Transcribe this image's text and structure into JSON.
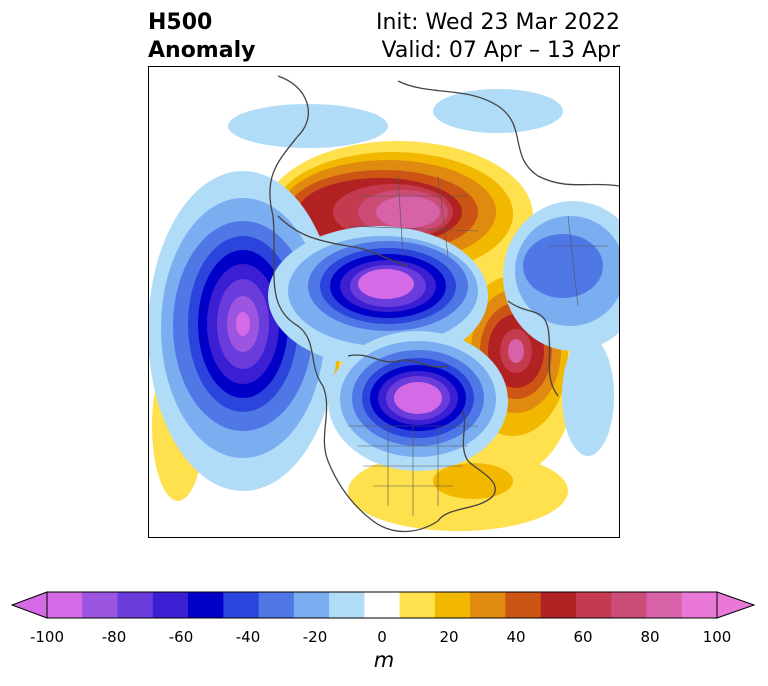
{
  "title": {
    "left_line1": "H500",
    "left_line2": "Anomaly",
    "right_line1": "Init: Wed 23 Mar 2022",
    "right_line2": "Valid: 07 Apr – 13 Apr"
  },
  "colorbar": {
    "label": "m",
    "ticks": [
      "-100",
      "-80",
      "-60",
      "-40",
      "-20",
      "0",
      "20",
      "40",
      "60",
      "80",
      "100"
    ],
    "colors": [
      "#d56ae6",
      "#9b55e0",
      "#6a3cdc",
      "#3b1fd2",
      "#0000c8",
      "#2a44dc",
      "#4f78e6",
      "#7aaef0",
      "#b0dcf8",
      "#ffffff",
      "#ffe04d",
      "#f2b800",
      "#e08a10",
      "#cc5515",
      "#b22222",
      "#c43a4f",
      "#cc4c78",
      "#d862a8",
      "#ea78d8"
    ],
    "extend_low": "#d56ae6",
    "extend_high": "#ea78d8"
  }
}
